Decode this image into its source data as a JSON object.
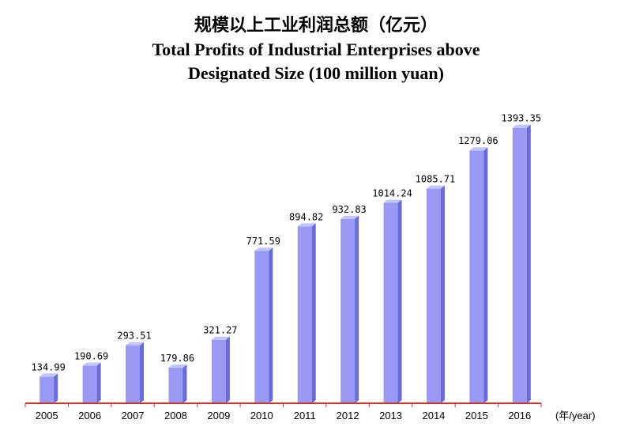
{
  "title_zh": "规模以上工业利润总额（亿元）",
  "title_en_line1": "Total Profits of Industrial Enterprises above",
  "title_en_line2": "Designated Size  (100 million yuan)",
  "x_unit": "(年/year)",
  "colors": {
    "bar_face": "#9a9af5",
    "bar_side": "#6a6ad8",
    "bar_top": "#c4c4ff",
    "axis": "#cc3333"
  },
  "chart_data": {
    "type": "bar",
    "categories": [
      "2005",
      "2006",
      "2007",
      "2008",
      "2009",
      "2010",
      "2011",
      "2012",
      "2013",
      "2014",
      "2015",
      "2016"
    ],
    "values": [
      134.99,
      190.69,
      293.51,
      179.86,
      321.27,
      771.59,
      894.82,
      932.83,
      1014.24,
      1085.71,
      1279.06,
      1393.35
    ],
    "value_labels": [
      "134.99",
      "190.69",
      "293.51",
      "179.86",
      "321.27",
      "771.59",
      "894.82",
      "932.83",
      "1014.24",
      "1085.71",
      "1279.06",
      "1393.35"
    ],
    "title": "Total Profits of Industrial Enterprises above Designated Size  (100 million yuan)",
    "xlabel": "(年/year)",
    "ylabel": "",
    "ylim": [
      0,
      1400
    ],
    "grid": false,
    "legend": "none"
  }
}
